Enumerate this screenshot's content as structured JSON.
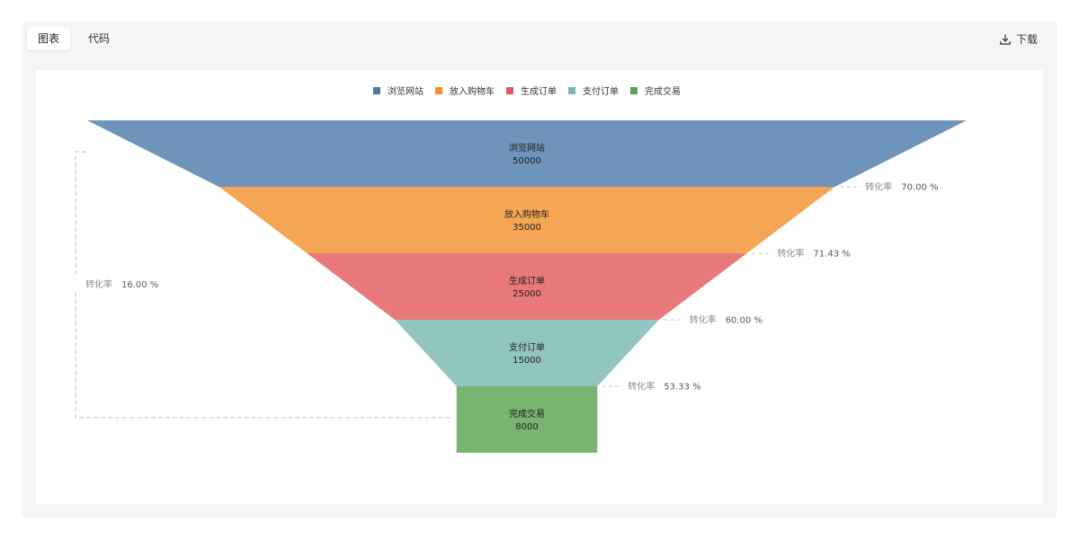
{
  "toolbar": {
    "tab_chart": "图表",
    "tab_code": "代码",
    "download_label": "下载",
    "download_icon": "download-icon"
  },
  "chart_data": {
    "type": "funnel",
    "colors": [
      "#6f94ba",
      "#f4a654",
      "#e8787a",
      "#92c5c0",
      "#7bb472"
    ],
    "legend_colors": [
      "#4e79a7",
      "#f28e2b",
      "#e15759",
      "#76b7b2",
      "#59a14f"
    ],
    "legend_position": "top-center",
    "stages": [
      {
        "name": "浏览网站",
        "value": 50000
      },
      {
        "name": "放入购物车",
        "value": 35000
      },
      {
        "name": "生成订单",
        "value": 25000
      },
      {
        "name": "支付订单",
        "value": 15000
      },
      {
        "name": "完成交易",
        "value": 8000
      }
    ],
    "conversion_label": "转化率",
    "conversions": [
      "70.00 %",
      "71.43 %",
      "60.00 %",
      "53.33 %"
    ],
    "overall_conversion": "16.00 %"
  }
}
